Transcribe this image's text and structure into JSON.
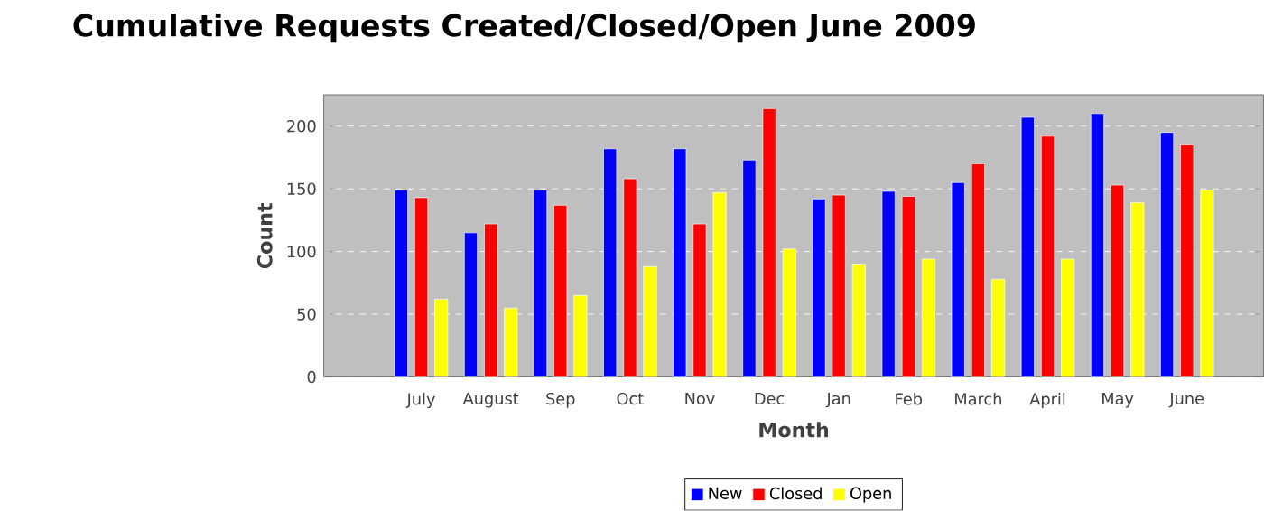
{
  "chart_data": {
    "type": "bar",
    "title": "Cumulative Requests Created/Closed/Open June 2009",
    "xlabel": "Month",
    "ylabel": "Count",
    "categories": [
      "July",
      "August",
      "Sep",
      "Oct",
      "Nov",
      "Dec",
      "Jan",
      "Feb",
      "March",
      "April",
      "May",
      "June"
    ],
    "series": [
      {
        "name": "New",
        "color": "#0000ff",
        "values": [
          149,
          115,
          149,
          182,
          182,
          173,
          142,
          148,
          155,
          207,
          210,
          195
        ]
      },
      {
        "name": "Closed",
        "color": "#ff0000",
        "values": [
          143,
          122,
          137,
          158,
          122,
          214,
          145,
          144,
          170,
          192,
          153,
          185
        ]
      },
      {
        "name": "Open",
        "color": "#ffff00",
        "values": [
          62,
          55,
          65,
          88,
          147,
          102,
          90,
          94,
          78,
          94,
          139,
          149
        ]
      }
    ],
    "ylim": [
      0,
      225
    ],
    "yticks": [
      0,
      50,
      100,
      150,
      200
    ],
    "grid": "y",
    "legend": "bottom"
  }
}
